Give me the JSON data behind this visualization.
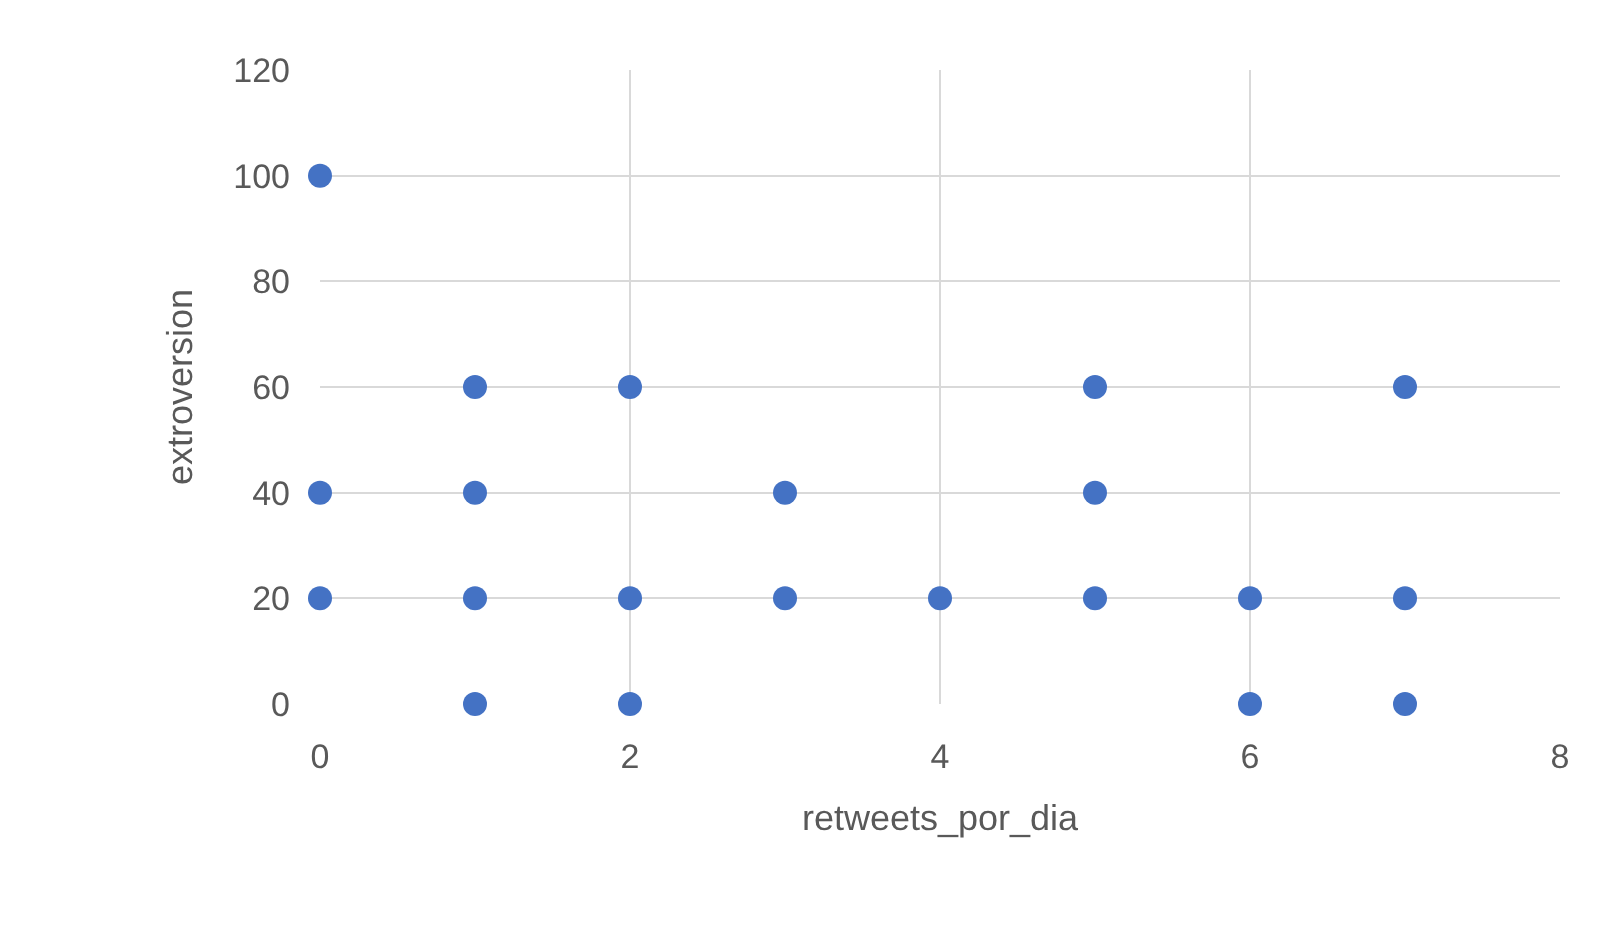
{
  "chart_data": {
    "type": "scatter",
    "xlabel": "retweets_por_dia",
    "ylabel": "extroversion",
    "x": [
      0,
      0,
      0,
      1,
      1,
      1,
      1,
      2,
      2,
      2,
      3,
      3,
      4,
      5,
      5,
      5,
      6,
      6,
      7,
      7,
      7
    ],
    "series": [
      {
        "color": "#4472c4",
        "values": [
          100,
          40,
          20,
          60,
          40,
          20,
          0,
          60,
          20,
          0,
          40,
          20,
          20,
          60,
          40,
          20,
          20,
          0,
          60,
          20,
          0
        ]
      }
    ],
    "xlim": [
      0,
      8
    ],
    "xticks": [
      0,
      2,
      4,
      6,
      8
    ],
    "ylim": [
      0,
      120
    ],
    "yticks": [
      0,
      20,
      40,
      60,
      80,
      100,
      120
    ],
    "grid": true,
    "marker": "circle",
    "legend": false
  }
}
